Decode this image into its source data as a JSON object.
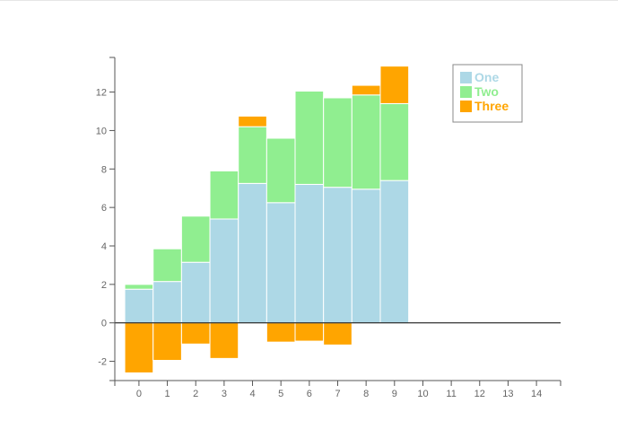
{
  "chart_data": {
    "type": "bar",
    "stacked": true,
    "x": [
      0,
      1,
      2,
      3,
      4,
      5,
      6,
      7,
      8,
      9
    ],
    "xlim": [
      -0.85,
      14.85
    ],
    "ylim": [
      -3,
      13.8
    ],
    "xticks": [
      0,
      1,
      2,
      3,
      4,
      5,
      6,
      7,
      8,
      9,
      10,
      11,
      12,
      13,
      14
    ],
    "yticks": [
      -2,
      0,
      2,
      4,
      6,
      8,
      10,
      12
    ],
    "grid": false,
    "legend_position": "top-right",
    "series": [
      {
        "name": "One",
        "color": "#add8e6",
        "values": [
          1.75,
          2.15,
          3.15,
          5.4,
          7.25,
          6.25,
          7.2,
          7.05,
          6.95,
          7.4
        ]
      },
      {
        "name": "Two",
        "color": "#90ee90",
        "values": [
          0.25,
          1.7,
          2.4,
          2.5,
          2.95,
          3.35,
          4.85,
          4.65,
          4.9,
          4.0
        ]
      },
      {
        "name": "Three",
        "color": "#ffa500",
        "values": [
          -2.6,
          -1.95,
          -1.1,
          -1.85,
          0.55,
          -1.0,
          -0.95,
          -1.15,
          0.5,
          1.95
        ]
      }
    ]
  }
}
